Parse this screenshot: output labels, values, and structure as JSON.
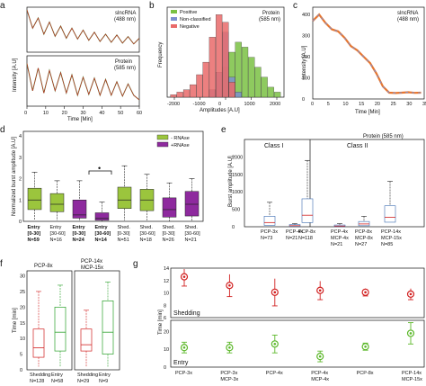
{
  "panels": {
    "a": {
      "letter": "a",
      "top_label": "slncRNA\n(488 nm)",
      "bottom_label": "Protein\n(585 nm)",
      "ylabel": "Intensity [A.U]",
      "xlabel": "Time [Min]",
      "xticks": [
        "0",
        "10",
        "20",
        "30",
        "40",
        "50",
        "60"
      ]
    },
    "b": {
      "letter": "b",
      "corner": "Protein\n(585 nm)",
      "ylabel": "Frequency",
      "xlabel": "Amplitudes [A.U]",
      "xticks": [
        "-2000",
        "-1000",
        "0",
        "1000",
        "2000"
      ],
      "legend": [
        {
          "name": "Positive",
          "color": "#7ac143"
        },
        {
          "name": "Non-classified",
          "color": "#7c8fd0"
        },
        {
          "name": "Negative",
          "color": "#e96a6a"
        }
      ]
    },
    "c": {
      "letter": "c",
      "corner": "slncRNA\n(488 nm)",
      "ylabel": "Intensity [A.U]",
      "xlabel": "Time [Min]",
      "yticks": [
        "0",
        "100",
        "200",
        "300",
        "400"
      ],
      "xticks": [
        "0",
        "5",
        "10",
        "15",
        "20",
        "25",
        "30",
        "35"
      ]
    },
    "d": {
      "letter": "d",
      "ylabel": "Normalized burst amplitude [A.U]",
      "yticks": [
        "0",
        "1",
        "2",
        "3",
        "4"
      ],
      "legend": [
        {
          "name": "- RNAse",
          "color": "#9bc53d"
        },
        {
          "name": "+RNAse",
          "color": "#8e2a9e"
        }
      ],
      "star": "•",
      "groups": [
        {
          "line1": "Entry",
          "line2": "[0-30]",
          "n": "N=59",
          "bold": true
        },
        {
          "line1": "Entry",
          "line2": "[30-60]",
          "n": "N=16",
          "bold": false
        },
        {
          "line1": "Entry",
          "line2": "[0-30]",
          "n": "N=24",
          "bold": true
        },
        {
          "line1": "Entry",
          "line2": "[30-60]",
          "n": "N=14",
          "bold": true
        },
        {
          "line1": "Shed.",
          "line2": "[0-30]",
          "n": "N=51",
          "bold": false
        },
        {
          "line1": "Shed.",
          "line2": "[30-60]",
          "n": "N=18",
          "bold": false
        },
        {
          "line1": "Shed.",
          "line2": "[0-30]",
          "n": "N=26",
          "bold": false
        },
        {
          "line1": "Shed.",
          "line2": "[30-60]",
          "n": "N=21",
          "bold": false
        }
      ]
    },
    "e": {
      "letter": "e",
      "top": "Protein (585 nm)",
      "class1": "Class I",
      "class2": "Class II",
      "ylabel": "Burst amplitude [A.U]",
      "yticks": [
        "0",
        "500",
        "1000",
        "1500",
        "2000"
      ],
      "groups": [
        {
          "line1": "PCP-3x",
          "line2": "",
          "n": "N=73"
        },
        {
          "line1": "PCP-4x",
          "line2": "",
          "n": "N=21"
        },
        {
          "line1": "PCP-8x",
          "line2": "",
          "n": "N=118"
        },
        {
          "line1": "PCP-4x",
          "line2": "MCP-4x",
          "n": "N=21"
        },
        {
          "line1": "PCP-8x",
          "line2": "MCP-8x",
          "n": "N=27"
        },
        {
          "line1": "PCP-14x",
          "line2": "MCP-15x",
          "n": "N=85"
        }
      ]
    },
    "f": {
      "letter": "f",
      "left_title": "PCP-8x",
      "right_title": "PCP-14x\nMCP-15x",
      "ylabel": "Time [min]",
      "yticks": [
        "0",
        "5",
        "10",
        "15",
        "20",
        "25",
        "30"
      ],
      "groups": [
        {
          "name": "Shedding",
          "n": "N=128"
        },
        {
          "name": "Entry",
          "n": "N=58"
        },
        {
          "name": "Shedding",
          "n": "N=29"
        },
        {
          "name": "Entry",
          "n": "N=9"
        }
      ]
    },
    "g": {
      "letter": "g",
      "ylabel": "Time [min]",
      "shedding_label": "Shedding",
      "entry_label": "Entry",
      "top_yticks": [
        "6",
        "8",
        "10",
        "12",
        "14"
      ],
      "bottom_yticks": [
        "0",
        "10",
        "20"
      ],
      "categories": [
        {
          "line1": "PCP-3x",
          "line2": ""
        },
        {
          "line1": "PCP-3x",
          "line2": "MCP-3x"
        },
        {
          "line1": "PCP-4x",
          "line2": ""
        },
        {
          "line1": "PCP-4x",
          "line2": "MCP-4x"
        },
        {
          "line1": "PCP-8x",
          "line2": ""
        },
        {
          "line1": "PCP-14x",
          "line2": "MCP-15x"
        }
      ]
    }
  },
  "chart_data": [
    {
      "type": "line",
      "panel": "a-top",
      "x": [
        0,
        3,
        6,
        9,
        12,
        15,
        18,
        21,
        24,
        27,
        30,
        33,
        36,
        39,
        42,
        45,
        48,
        51,
        54,
        57,
        60
      ],
      "y": [
        1,
        0.55,
        0.8,
        0.4,
        0.7,
        0.35,
        0.6,
        0.3,
        0.55,
        0.28,
        0.5,
        0.25,
        0.45,
        0.22,
        0.4,
        0.2,
        0.38,
        0.18,
        0.34,
        0.16,
        0.3
      ]
    },
    {
      "type": "line",
      "panel": "a-bottom",
      "x": [
        0,
        3,
        6,
        9,
        12,
        15,
        18,
        21,
        24,
        27,
        30,
        33,
        36,
        39,
        42,
        45,
        48,
        51,
        54,
        57,
        60
      ],
      "y": [
        0.9,
        0.3,
        0.8,
        0.25,
        0.75,
        0.3,
        0.7,
        0.25,
        0.65,
        0.2,
        0.6,
        0.22,
        0.58,
        0.2,
        0.55,
        0.2,
        0.5,
        0.18,
        0.45,
        0.2,
        0.1
      ]
    },
    {
      "type": "bar",
      "panel": "b",
      "x": [
        -2000,
        -1750,
        -1500,
        -1250,
        -1000,
        -750,
        -500,
        -250,
        0,
        250,
        500,
        750,
        1000,
        1250,
        1500,
        1750,
        2000
      ],
      "series": [
        {
          "name": "Positive",
          "values": [
            0,
            0,
            0,
            0,
            0,
            0,
            0,
            0,
            12,
            18,
            22,
            20,
            16,
            12,
            8,
            4,
            2
          ]
        },
        {
          "name": "Non-classified",
          "values": [
            0,
            0,
            0,
            0,
            0,
            0,
            3,
            10,
            26,
            8,
            2,
            0,
            0,
            0,
            0,
            0,
            0
          ]
        },
        {
          "name": "Negative",
          "values": [
            1,
            2,
            3,
            5,
            9,
            14,
            24,
            33,
            30,
            6,
            0,
            0,
            0,
            0,
            0,
            0,
            0
          ]
        }
      ]
    },
    {
      "type": "line",
      "panel": "c",
      "xlim": [
        0,
        35
      ],
      "ylim": [
        0,
        400
      ],
      "x": [
        0,
        2,
        4,
        6,
        8,
        10,
        12,
        14,
        16,
        18,
        20,
        22,
        24,
        26,
        28,
        30,
        32,
        34
      ],
      "y": [
        370,
        400,
        360,
        330,
        320,
        290,
        250,
        230,
        200,
        170,
        120,
        60,
        30,
        28,
        30,
        32,
        29,
        30
      ]
    },
    {
      "type": "box",
      "panel": "d",
      "ylim": [
        0,
        4
      ],
      "boxes": [
        {
          "q1": 0.55,
          "med": 1.0,
          "q3": 1.55,
          "lo": 0.05,
          "hi": 2.3,
          "rnase": false
        },
        {
          "q1": 0.45,
          "med": 0.8,
          "q3": 1.3,
          "lo": 0.05,
          "hi": 1.9,
          "rnase": false
        },
        {
          "q1": 0.15,
          "med": 0.3,
          "q3": 1.0,
          "lo": 0.0,
          "hi": 1.9,
          "rnase": true
        },
        {
          "q1": 0.05,
          "med": 0.15,
          "q3": 0.4,
          "lo": 0.0,
          "hi": 0.9,
          "rnase": true
        },
        {
          "q1": 0.6,
          "med": 1.0,
          "q3": 1.6,
          "lo": 0.05,
          "hi": 2.6,
          "rnase": false
        },
        {
          "q1": 0.5,
          "med": 1.0,
          "q3": 1.5,
          "lo": 0.05,
          "hi": 2.2,
          "rnase": false
        },
        {
          "q1": 0.2,
          "med": 0.55,
          "q3": 1.1,
          "lo": 0.0,
          "hi": 1.8,
          "rnase": true
        },
        {
          "q1": 0.25,
          "med": 0.8,
          "q3": 1.4,
          "lo": 0.0,
          "hi": 2.0,
          "rnase": true
        }
      ]
    },
    {
      "type": "box",
      "panel": "e",
      "ylim": [
        0,
        2000
      ],
      "boxes": [
        {
          "q1": 40,
          "med": 120,
          "q3": 300,
          "lo": 0,
          "hi": 700
        },
        {
          "q1": 10,
          "med": 30,
          "q3": 60,
          "lo": 0,
          "hi": 90
        },
        {
          "q1": 120,
          "med": 330,
          "q3": 800,
          "lo": 0,
          "hi": 1900
        },
        {
          "q1": 5,
          "med": 20,
          "q3": 50,
          "lo": 0,
          "hi": 90
        },
        {
          "q1": 30,
          "med": 80,
          "q3": 150,
          "lo": 0,
          "hi": 300
        },
        {
          "q1": 130,
          "med": 270,
          "q3": 600,
          "lo": 0,
          "hi": 1300
        }
      ]
    },
    {
      "type": "box",
      "panel": "f",
      "ylim": [
        0,
        30
      ],
      "boxes": [
        {
          "q1": 4,
          "med": 7,
          "q3": 13,
          "lo": 1,
          "hi": 25
        },
        {
          "q1": 6,
          "med": 12,
          "q3": 20,
          "lo": 1,
          "hi": 27
        },
        {
          "q1": 6,
          "med": 8,
          "q3": 13,
          "lo": 1,
          "hi": 19
        },
        {
          "q1": 5,
          "med": 12,
          "q3": 22,
          "lo": 1,
          "hi": 28
        }
      ]
    },
    {
      "type": "scatter",
      "panel": "g-shedding",
      "ylim": [
        6,
        14
      ],
      "x": [
        1,
        2,
        3,
        4,
        5,
        6
      ],
      "y": [
        12.6,
        11.2,
        10.1,
        10.4,
        10.1,
        9.8
      ],
      "err": [
        1.5,
        1.8,
        2.2,
        1.5,
        0.6,
        0.9
      ]
    },
    {
      "type": "scatter",
      "panel": "g-entry",
      "ylim": [
        0,
        25
      ],
      "x": [
        1,
        2,
        3,
        4,
        5,
        6
      ],
      "y": [
        11,
        11,
        13,
        6,
        11.5,
        19
      ],
      "err": [
        3,
        3,
        5,
        3,
        2,
        6
      ]
    }
  ]
}
